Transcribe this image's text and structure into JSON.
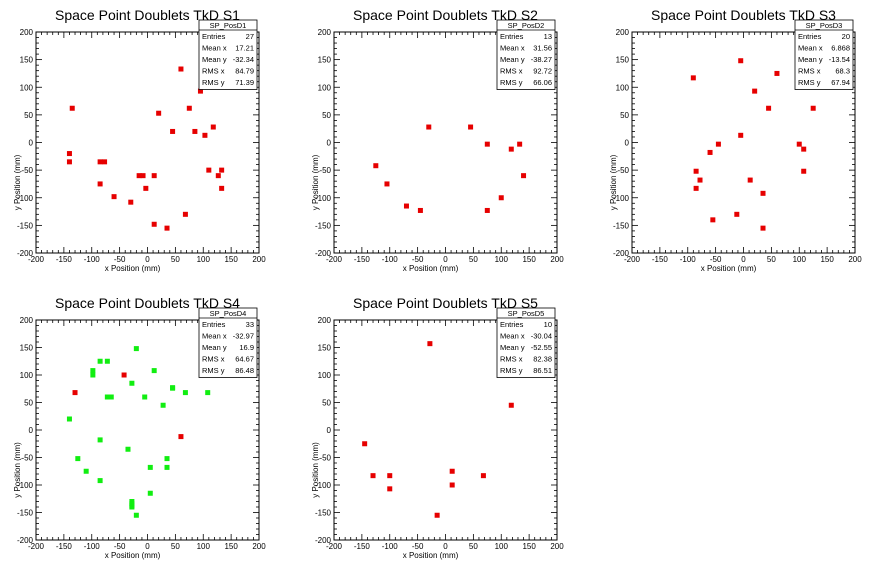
{
  "chart_data": [
    {
      "type": "scatter",
      "title": "Space Point Doublets TkD S1",
      "xlabel": "x Position (mm)",
      "ylabel": "y Position (mm)",
      "xlim": [
        -200,
        200
      ],
      "ylim": [
        -200,
        200
      ],
      "xticks": [
        "-200",
        "-150",
        "-100",
        "-50",
        "0",
        "50",
        "100",
        "150",
        "200"
      ],
      "yticks": [
        "-200",
        "-150",
        "-100",
        "-50",
        "0",
        "50",
        "100",
        "150",
        "200"
      ],
      "grid": false,
      "marker_color": "#e60000",
      "stats": {
        "name": "SP_PosD1",
        "rows": [
          {
            "label": "Entries",
            "value": "27"
          },
          {
            "label": "Mean x",
            "value": "17.21"
          },
          {
            "label": "Mean y",
            "value": "-32.34"
          },
          {
            "label": "RMS x",
            "value": "84.79"
          },
          {
            "label": "RMS y",
            "value": "71.39"
          }
        ]
      },
      "points": [
        {
          "x": -135,
          "y": 62
        },
        {
          "x": -140,
          "y": -20
        },
        {
          "x": -140,
          "y": -35
        },
        {
          "x": -85,
          "y": -35
        },
        {
          "x": -77,
          "y": -35
        },
        {
          "x": -85,
          "y": -75
        },
        {
          "x": -60,
          "y": -98
        },
        {
          "x": -30,
          "y": -108
        },
        {
          "x": -15,
          "y": -60
        },
        {
          "x": -8,
          "y": -60
        },
        {
          "x": -3,
          "y": -83
        },
        {
          "x": 12,
          "y": -60
        },
        {
          "x": 12,
          "y": -148
        },
        {
          "x": 20,
          "y": 53
        },
        {
          "x": 35,
          "y": -155
        },
        {
          "x": 45,
          "y": 20
        },
        {
          "x": 60,
          "y": 133
        },
        {
          "x": 68,
          "y": -130
        },
        {
          "x": 75,
          "y": 62
        },
        {
          "x": 85,
          "y": 20
        },
        {
          "x": 95,
          "y": 93
        },
        {
          "x": 103,
          "y": 13
        },
        {
          "x": 110,
          "y": -50
        },
        {
          "x": 118,
          "y": 28
        },
        {
          "x": 127,
          "y": -60
        },
        {
          "x": 133,
          "y": -50
        },
        {
          "x": 133,
          "y": -83
        }
      ]
    },
    {
      "type": "scatter",
      "title": "Space Point Doublets TkD S2",
      "xlabel": "x Position (mm)",
      "ylabel": "y Position (mm)",
      "xlim": [
        -200,
        200
      ],
      "ylim": [
        -200,
        200
      ],
      "xticks": [
        "-200",
        "-150",
        "-100",
        "-50",
        "0",
        "50",
        "100",
        "150",
        "200"
      ],
      "yticks": [
        "-200",
        "-150",
        "-100",
        "-50",
        "0",
        "50",
        "100",
        "150",
        "200"
      ],
      "grid": false,
      "marker_color": "#e60000",
      "stats": {
        "name": "SP_PosD2",
        "rows": [
          {
            "label": "Entries",
            "value": "13"
          },
          {
            "label": "Mean x",
            "value": "31.56"
          },
          {
            "label": "Mean y",
            "value": "-38.27"
          },
          {
            "label": "RMS x",
            "value": "92.72"
          },
          {
            "label": "RMS y",
            "value": "66.06"
          }
        ]
      },
      "points": [
        {
          "x": -125,
          "y": -42
        },
        {
          "x": -105,
          "y": -75
        },
        {
          "x": -70,
          "y": -115
        },
        {
          "x": -45,
          "y": -123
        },
        {
          "x": -30,
          "y": 28
        },
        {
          "x": 45,
          "y": 28
        },
        {
          "x": 75,
          "y": -3
        },
        {
          "x": 75,
          "y": -123
        },
        {
          "x": 100,
          "y": -100
        },
        {
          "x": 115,
          "y": 102
        },
        {
          "x": 118,
          "y": -12
        },
        {
          "x": 133,
          "y": -3
        },
        {
          "x": 140,
          "y": -60
        }
      ]
    },
    {
      "type": "scatter",
      "title": "Space Point Doublets TkD S3",
      "xlabel": "x Position (mm)",
      "ylabel": "y Position (mm)",
      "xlim": [
        -200,
        200
      ],
      "ylim": [
        -200,
        200
      ],
      "xticks": [
        "-200",
        "-150",
        "-100",
        "-50",
        "0",
        "50",
        "100",
        "150",
        "200"
      ],
      "yticks": [
        "-200",
        "-150",
        "-100",
        "-50",
        "0",
        "50",
        "100",
        "150",
        "200"
      ],
      "grid": false,
      "marker_color": "#e60000",
      "stats": {
        "name": "SP_PosD3",
        "rows": [
          {
            "label": "Entries",
            "value": "20"
          },
          {
            "label": "Mean x",
            "value": "6.868"
          },
          {
            "label": "Mean y",
            "value": "-13.54"
          },
          {
            "label": "RMS x",
            "value": "68.3"
          },
          {
            "label": "RMS y",
            "value": "67.94"
          }
        ]
      },
      "points": [
        {
          "x": -90,
          "y": 117
        },
        {
          "x": -85,
          "y": -52
        },
        {
          "x": -85,
          "y": -83
        },
        {
          "x": -78,
          "y": -68
        },
        {
          "x": -60,
          "y": -18
        },
        {
          "x": -55,
          "y": -140
        },
        {
          "x": -45,
          "y": -3
        },
        {
          "x": -12,
          "y": -130
        },
        {
          "x": -5,
          "y": 148
        },
        {
          "x": -5,
          "y": 13
        },
        {
          "x": 12,
          "y": -68
        },
        {
          "x": 20,
          "y": 93
        },
        {
          "x": 35,
          "y": -92
        },
        {
          "x": 35,
          "y": -155
        },
        {
          "x": 45,
          "y": 62
        },
        {
          "x": 60,
          "y": 125
        },
        {
          "x": 100,
          "y": -3
        },
        {
          "x": 108,
          "y": -12
        },
        {
          "x": 108,
          "y": -52
        },
        {
          "x": 125,
          "y": 62
        }
      ]
    },
    {
      "type": "scatter",
      "title": "Space Point Doublets TkD S4",
      "xlabel": "x Position (mm)",
      "ylabel": "y Position (mm)",
      "xlim": [
        -200,
        200
      ],
      "ylim": [
        -200,
        200
      ],
      "xticks": [
        "-200",
        "-150",
        "-100",
        "-50",
        "0",
        "50",
        "100",
        "150",
        "200"
      ],
      "yticks": [
        "-200",
        "-150",
        "-100",
        "-50",
        "0",
        "50",
        "100",
        "150",
        "200"
      ],
      "grid": false,
      "marker_color": "#11ee11",
      "marker_color_secondary": "#e60000",
      "stats": {
        "name": "SP_PosD4",
        "rows": [
          {
            "label": "Entries",
            "value": "33"
          },
          {
            "label": "Mean x",
            "value": "-32.97"
          },
          {
            "label": "Mean y",
            "value": "16.9"
          },
          {
            "label": "RMS x",
            "value": "64.67"
          },
          {
            "label": "RMS y",
            "value": "86.48"
          }
        ]
      },
      "points": [
        {
          "x": -140,
          "y": 20,
          "c": "g"
        },
        {
          "x": -130,
          "y": 68,
          "c": "r"
        },
        {
          "x": -125,
          "y": -52,
          "c": "g"
        },
        {
          "x": -110,
          "y": -75,
          "c": "g"
        },
        {
          "x": -98,
          "y": 108,
          "c": "g"
        },
        {
          "x": -98,
          "y": 100,
          "c": "g"
        },
        {
          "x": -85,
          "y": 125,
          "c": "g"
        },
        {
          "x": -85,
          "y": -18,
          "c": "g"
        },
        {
          "x": -85,
          "y": -92,
          "c": "g"
        },
        {
          "x": -72,
          "y": 125,
          "c": "g"
        },
        {
          "x": -72,
          "y": 60,
          "c": "g"
        },
        {
          "x": -65,
          "y": 60,
          "c": "g"
        },
        {
          "x": -42,
          "y": 100,
          "c": "r"
        },
        {
          "x": -35,
          "y": -35,
          "c": "g"
        },
        {
          "x": -28,
          "y": 85,
          "c": "g"
        },
        {
          "x": -28,
          "y": -130,
          "c": "g"
        },
        {
          "x": -28,
          "y": -138,
          "c": "g"
        },
        {
          "x": -28,
          "y": -140,
          "c": "g"
        },
        {
          "x": -20,
          "y": 148,
          "c": "g"
        },
        {
          "x": -20,
          "y": -155,
          "c": "g"
        },
        {
          "x": -5,
          "y": 60,
          "c": "g"
        },
        {
          "x": 5,
          "y": -68,
          "c": "g"
        },
        {
          "x": 5,
          "y": -115,
          "c": "g"
        },
        {
          "x": 12,
          "y": 108,
          "c": "g"
        },
        {
          "x": 28,
          "y": 45,
          "c": "g"
        },
        {
          "x": 35,
          "y": -52,
          "c": "g"
        },
        {
          "x": 35,
          "y": -68,
          "c": "g"
        },
        {
          "x": 45,
          "y": 77,
          "c": "g"
        },
        {
          "x": 45,
          "y": 76,
          "c": "g"
        },
        {
          "x": 60,
          "y": -12,
          "c": "r"
        },
        {
          "x": 68,
          "y": 68,
          "c": "g"
        },
        {
          "x": 108,
          "y": 68,
          "c": "g"
        },
        {
          "x": -28,
          "y": -134,
          "c": "g"
        }
      ]
    },
    {
      "type": "scatter",
      "title": "Space Point Doublets TkD S5",
      "xlabel": "x Position (mm)",
      "ylabel": "y Position (mm)",
      "xlim": [
        -200,
        200
      ],
      "ylim": [
        -200,
        200
      ],
      "xticks": [
        "-200",
        "-150",
        "-100",
        "-50",
        "0",
        "50",
        "100",
        "150",
        "200"
      ],
      "yticks": [
        "-200",
        "-150",
        "-100",
        "-50",
        "0",
        "50",
        "100",
        "150",
        "200"
      ],
      "grid": false,
      "marker_color": "#e60000",
      "stats": {
        "name": "SP_PosD5",
        "rows": [
          {
            "label": "Entries",
            "value": "10"
          },
          {
            "label": "Mean x",
            "value": "-30.04"
          },
          {
            "label": "Mean y",
            "value": "-52.55"
          },
          {
            "label": "RMS x",
            "value": "82.38"
          },
          {
            "label": "RMS y",
            "value": "86.51"
          }
        ]
      },
      "points": [
        {
          "x": -145,
          "y": -25
        },
        {
          "x": -130,
          "y": -83
        },
        {
          "x": -100,
          "y": -83
        },
        {
          "x": -100,
          "y": -107
        },
        {
          "x": -28,
          "y": 157
        },
        {
          "x": -15,
          "y": -155
        },
        {
          "x": 12,
          "y": -75
        },
        {
          "x": 12,
          "y": -100
        },
        {
          "x": 68,
          "y": -83
        },
        {
          "x": 118,
          "y": 45
        }
      ]
    }
  ]
}
